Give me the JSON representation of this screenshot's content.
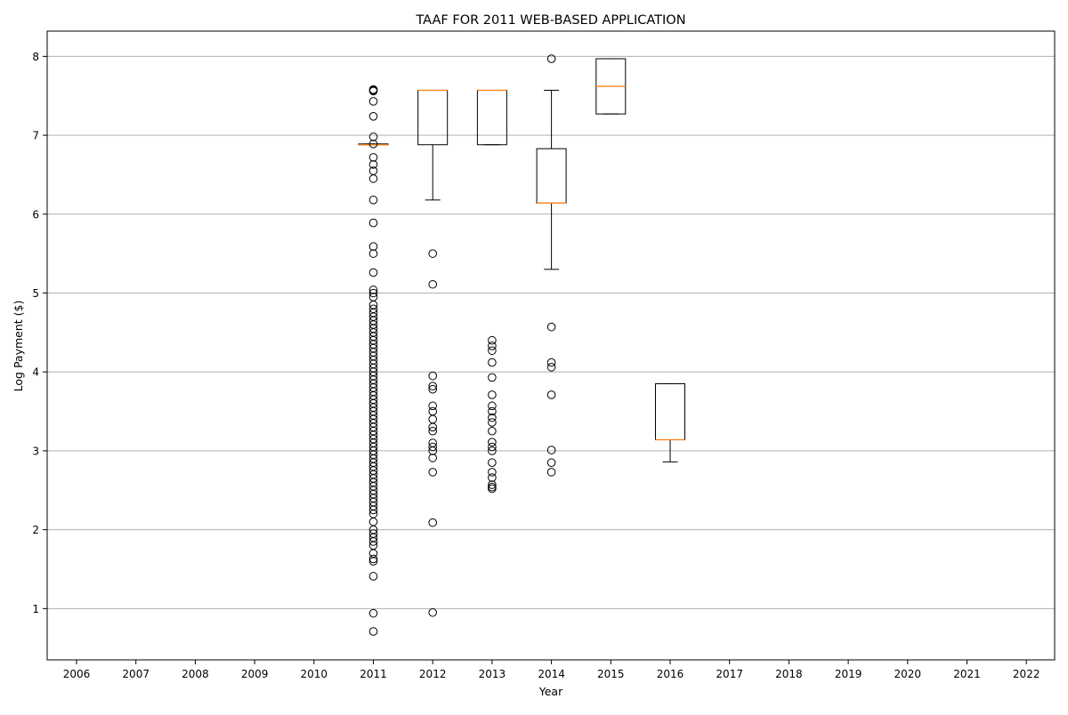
{
  "chart_data": {
    "type": "box",
    "title": "TAAF FOR 2011 WEB-BASED APPLICATION",
    "xlabel": "Year",
    "ylabel": "Log Payment ($)",
    "categories": [
      "2006",
      "2007",
      "2008",
      "2009",
      "2010",
      "2011",
      "2012",
      "2013",
      "2014",
      "2015",
      "2016",
      "2017",
      "2018",
      "2019",
      "2020",
      "2021",
      "2022"
    ],
    "ylim": [
      0.35,
      8.32
    ],
    "yticks": [
      1,
      2,
      3,
      4,
      5,
      6,
      7,
      8
    ],
    "grid": "y-major",
    "colors": {
      "box": "#000000",
      "median": "#ff7f0e",
      "grid": "#b0b0b0"
    },
    "boxes": [
      {
        "year": "2011",
        "q1": 6.88,
        "median": 6.88,
        "q3": 6.89,
        "whisker_low": 6.88,
        "whisker_high": 6.89,
        "outliers": [
          7.58,
          7.57,
          7.56,
          7.43,
          7.24,
          6.98,
          6.89,
          6.72,
          6.63,
          6.55,
          6.45,
          6.18,
          5.89,
          5.59,
          5.5,
          5.26,
          5.04,
          5.0,
          4.95,
          4.85,
          4.8,
          4.75,
          4.7,
          4.65,
          4.6,
          4.55,
          4.5,
          4.45,
          4.4,
          4.35,
          4.3,
          4.25,
          4.2,
          4.15,
          4.1,
          4.05,
          4.0,
          3.95,
          3.9,
          3.85,
          3.8,
          3.75,
          3.7,
          3.65,
          3.6,
          3.55,
          3.5,
          3.45,
          3.4,
          3.35,
          3.3,
          3.25,
          3.2,
          3.15,
          3.1,
          3.05,
          3.0,
          2.95,
          2.9,
          2.85,
          2.8,
          2.75,
          2.7,
          2.65,
          2.6,
          2.55,
          2.5,
          2.45,
          2.4,
          2.35,
          2.3,
          2.25,
          2.2,
          2.1,
          2.0,
          1.95,
          1.9,
          1.85,
          1.8,
          1.7,
          1.63,
          1.6,
          1.41,
          0.94,
          0.71
        ]
      },
      {
        "year": "2012",
        "q1": 6.88,
        "median": 7.57,
        "q3": 7.57,
        "whisker_low": 6.18,
        "whisker_high": 7.57,
        "outliers": [
          5.5,
          5.11,
          3.95,
          3.82,
          3.78,
          3.57,
          3.5,
          3.4,
          3.3,
          3.25,
          3.1,
          3.05,
          3.0,
          2.91,
          2.73,
          2.09,
          0.95
        ]
      },
      {
        "year": "2013",
        "q1": 6.88,
        "median": 7.57,
        "q3": 7.57,
        "whisker_low": 6.88,
        "whisker_high": 7.57,
        "outliers": [
          4.4,
          4.33,
          4.27,
          4.12,
          3.93,
          3.71,
          3.57,
          3.5,
          3.42,
          3.36,
          3.25,
          3.11,
          3.05,
          3.0,
          2.85,
          2.73,
          2.66,
          2.57,
          2.54,
          2.52
        ]
      },
      {
        "year": "2014",
        "q1": 6.14,
        "median": 6.14,
        "q3": 6.83,
        "whisker_low": 5.3,
        "whisker_high": 7.57,
        "outliers": [
          7.97,
          4.57,
          4.12,
          4.06,
          3.71,
          3.01,
          2.85,
          2.73
        ]
      },
      {
        "year": "2015",
        "q1": 7.27,
        "median": 7.62,
        "q3": 7.97,
        "whisker_low": 7.27,
        "whisker_high": 7.97,
        "outliers": []
      },
      {
        "year": "2016",
        "q1": 3.14,
        "median": 3.14,
        "q3": 3.85,
        "whisker_low": 2.86,
        "whisker_high": 3.85,
        "outliers": []
      }
    ]
  }
}
